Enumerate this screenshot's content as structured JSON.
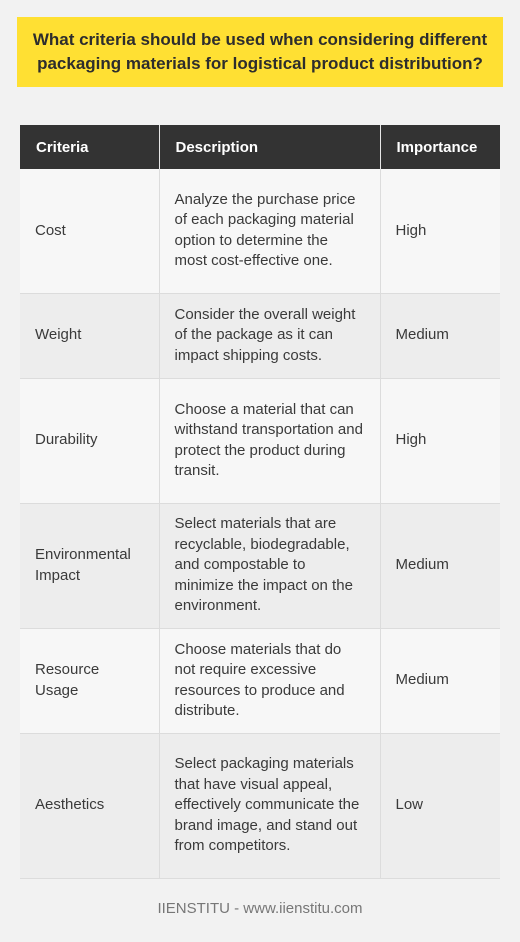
{
  "title": "What criteria should be used when considering different packaging materials for logistical product distribution?",
  "table": {
    "headers": [
      "Criteria",
      "Description",
      "Importance"
    ],
    "rows": [
      {
        "criteria": "Cost",
        "description": "Analyze the purchase price of each packaging material option to determine the most cost-effective one.",
        "importance": "High"
      },
      {
        "criteria": "Weight",
        "description": "Consider the overall weight of the package as it can impact shipping costs.",
        "importance": "Medium"
      },
      {
        "criteria": "Durability",
        "description": "Choose a material that can withstand transportation and protect the product during transit.",
        "importance": "High"
      },
      {
        "criteria": "Environmental Impact",
        "description": "Select materials that are recyclable, biodegradable, and compostable to minimize the impact on the environment.",
        "importance": "Medium"
      },
      {
        "criteria": "Resource Usage",
        "description": "Choose materials that do not require excessive resources to produce and distribute.",
        "importance": "Medium"
      },
      {
        "criteria": "Aesthetics",
        "description": "Select packaging materials that have visual appeal, effectively communicate the brand image, and stand out from competitors.",
        "importance": "Low"
      }
    ]
  },
  "footer": "IIENSTITU - www.iienstitu.com",
  "colors": {
    "title_background": "#ffe033",
    "header_background": "#333333",
    "page_background": "#f2f2f2"
  }
}
